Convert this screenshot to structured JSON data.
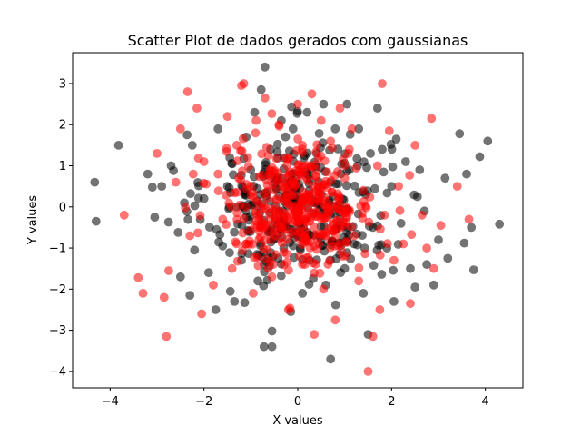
{
  "chart_data": {
    "type": "scatter",
    "title": "Scatter Plot de dados gerados com gaussianas",
    "xlabel": "X values",
    "ylabel": "Y values",
    "xlim": [
      -4.8,
      4.8
    ],
    "ylim": [
      -4.4,
      3.75
    ],
    "xticks": [
      -4,
      -2,
      0,
      2,
      4
    ],
    "xtick_labels": [
      "−4",
      "−2",
      "0",
      "2",
      "4"
    ],
    "yticks": [
      -4,
      -3,
      -2,
      -1,
      0,
      1,
      2,
      3
    ],
    "ytick_labels": [
      "−4",
      "−3",
      "−2",
      "−1",
      "0",
      "1",
      "2",
      "3"
    ],
    "grid": false,
    "series": [
      {
        "color": "#000000",
        "opacity": 0.55,
        "distribution": {
          "mean_x": 0,
          "mean_y": 0,
          "std_x": 1.3,
          "std_y": 1.2
        },
        "points": [
          [
            -4.33,
            0.6
          ],
          [
            -4.3,
            -0.35
          ],
          [
            -3.82,
            1.5
          ],
          [
            -3.2,
            0.8
          ],
          [
            -3.1,
            0.48
          ],
          [
            -3.05,
            -0.25
          ],
          [
            -2.9,
            0.5
          ],
          [
            -2.7,
            1.0
          ],
          [
            -2.65,
            0.88
          ],
          [
            -2.55,
            -0.62
          ],
          [
            -2.5,
            -1.7
          ],
          [
            -2.3,
            -2.15
          ],
          [
            -2.25,
            1.5
          ],
          [
            -2.2,
            -1.05
          ],
          [
            -2.0,
            0.2
          ],
          [
            -1.9,
            -1.6
          ],
          [
            -1.75,
            -2.5
          ],
          [
            -1.7,
            1.9
          ],
          [
            -1.6,
            -0.95
          ],
          [
            -1.5,
            0.5
          ],
          [
            -1.45,
            1.2
          ],
          [
            -1.35,
            -2.3
          ],
          [
            -1.3,
            0.0
          ],
          [
            -1.2,
            -1.3
          ],
          [
            -1.1,
            1.7
          ],
          [
            -1.05,
            -0.6
          ],
          [
            -1.0,
            0.9
          ],
          [
            -0.92,
            2.3
          ],
          [
            -0.85,
            -1.8
          ],
          [
            -0.8,
            0.3
          ],
          [
            -0.78,
            2.85
          ],
          [
            -0.7,
            3.4
          ],
          [
            -0.72,
            -3.4
          ],
          [
            -0.62,
            -1.25
          ],
          [
            -0.58,
            1.4
          ],
          [
            -0.55,
            -3.02
          ],
          [
            -0.55,
            -3.4
          ],
          [
            -0.5,
            0.7
          ],
          [
            -0.4,
            -0.4
          ],
          [
            -0.35,
            2.1
          ],
          [
            -0.3,
            -1.0
          ],
          [
            -0.2,
            0.4
          ],
          [
            -0.15,
            -2.55
          ],
          [
            -0.1,
            1.9
          ],
          [
            0.0,
            -0.2
          ],
          [
            0.05,
            0.8
          ],
          [
            0.1,
            -2.1
          ],
          [
            0.2,
            2.3
          ],
          [
            0.25,
            -1.3
          ],
          [
            0.35,
            0.1
          ],
          [
            0.4,
            1.3
          ],
          [
            0.5,
            -0.8
          ],
          [
            0.55,
            2.5
          ],
          [
            0.6,
            -1.9
          ],
          [
            0.7,
            0.6
          ],
          [
            0.7,
            -3.7
          ],
          [
            0.8,
            1.9
          ],
          [
            0.9,
            -0.3
          ],
          [
            1.0,
            -1.5
          ],
          [
            1.05,
            2.5
          ],
          [
            1.1,
            0.9
          ],
          [
            1.2,
            -0.9
          ],
          [
            1.3,
            1.9
          ],
          [
            1.4,
            -2.1
          ],
          [
            1.45,
            0.3
          ],
          [
            1.5,
            -3.1
          ],
          [
            1.55,
            1.3
          ],
          [
            1.6,
            -0.5
          ],
          [
            1.7,
            2.4
          ],
          [
            1.8,
            1.4
          ],
          [
            1.9,
            -1.0
          ],
          [
            2.0,
            0.5
          ],
          [
            2.05,
            -2.3
          ],
          [
            2.1,
            1.65
          ],
          [
            2.2,
            -0.4
          ],
          [
            2.3,
            1.1
          ],
          [
            2.4,
            -1.5
          ],
          [
            2.5,
            -1.95
          ],
          [
            2.55,
            0.25
          ],
          [
            2.6,
            0.9
          ],
          [
            2.7,
            -0.1
          ],
          [
            2.75,
            -1.4
          ],
          [
            2.9,
            -1.9
          ],
          [
            3.0,
            -0.8
          ],
          [
            3.2,
            -1.25
          ],
          [
            3.45,
            1.78
          ],
          [
            3.55,
            -0.88
          ],
          [
            3.6,
            0.8
          ],
          [
            3.7,
            -0.5
          ],
          [
            3.75,
            -1.53
          ],
          [
            3.88,
            1.22
          ],
          [
            4.05,
            1.6
          ],
          [
            4.3,
            -0.42
          ]
        ]
      },
      {
        "color": "#ff0000",
        "opacity": 0.55,
        "distribution": {
          "mean_x": 0,
          "mean_y": 0,
          "std_x": 1.1,
          "std_y": 1.0
        },
        "points": [
          [
            -3.4,
            -1.72
          ],
          [
            -3.3,
            -2.1
          ],
          [
            -3.7,
            -0.2
          ],
          [
            -3.0,
            1.3
          ],
          [
            -2.85,
            -2.2
          ],
          [
            -2.8,
            -3.15
          ],
          [
            -2.75,
            -1.55
          ],
          [
            -2.6,
            0.6
          ],
          [
            -2.5,
            1.9
          ],
          [
            -2.35,
            2.8
          ],
          [
            -2.3,
            -0.7
          ],
          [
            -2.15,
            2.4
          ],
          [
            -2.05,
            -2.6
          ],
          [
            -2.0,
            1.1
          ],
          [
            -1.8,
            -1.9
          ],
          [
            -1.7,
            0.8
          ],
          [
            -1.6,
            -0.3
          ],
          [
            -1.5,
            2.2
          ],
          [
            -1.4,
            -1.5
          ],
          [
            -1.3,
            1.5
          ],
          [
            -1.2,
            2.95
          ],
          [
            -1.15,
            3.0
          ],
          [
            -1.1,
            -0.9
          ],
          [
            -1.0,
            0.5
          ],
          [
            -0.95,
            -2.1
          ],
          [
            -0.9,
            1.8
          ],
          [
            -0.8,
            -0.5
          ],
          [
            -0.7,
            2.65
          ],
          [
            -0.6,
            0.9
          ],
          [
            -0.55,
            -1.7
          ],
          [
            -0.45,
            0.2
          ],
          [
            -0.4,
            2.0
          ],
          [
            -0.3,
            -1.1
          ],
          [
            -0.25,
            1.2
          ],
          [
            -0.2,
            -2.5
          ],
          [
            -0.1,
            0.6
          ],
          [
            0.0,
            2.5
          ],
          [
            0.05,
            -0.6
          ],
          [
            0.1,
            1.5
          ],
          [
            0.15,
            -1.4
          ],
          [
            0.2,
            0.3
          ],
          [
            0.3,
            2.75
          ],
          [
            0.35,
            -3.1
          ],
          [
            0.4,
            0.9
          ],
          [
            0.45,
            -0.9
          ],
          [
            0.5,
            2.1
          ],
          [
            0.55,
            -2.0
          ],
          [
            0.6,
            0.0
          ],
          [
            0.7,
            1.6
          ],
          [
            0.75,
            -0.4
          ],
          [
            0.8,
            -2.75
          ],
          [
            0.9,
            2.4
          ],
          [
            0.95,
            -1.2
          ],
          [
            1.0,
            0.7
          ],
          [
            1.1,
            1.4
          ],
          [
            1.2,
            -0.7
          ],
          [
            1.3,
            -1.8
          ],
          [
            1.4,
            0.4
          ],
          [
            1.5,
            -4.0
          ],
          [
            1.6,
            -3.15
          ],
          [
            1.7,
            1.0
          ],
          [
            1.75,
            -2.5
          ],
          [
            1.8,
            3.0
          ],
          [
            1.85,
            -0.2
          ],
          [
            1.95,
            1.85
          ],
          [
            2.05,
            -1.3
          ],
          [
            2.15,
            0.5
          ],
          [
            2.25,
            -0.9
          ],
          [
            2.4,
            -2.35
          ],
          [
            2.5,
            1.5
          ],
          [
            2.65,
            -0.2
          ],
          [
            2.75,
            -1.0
          ],
          [
            2.85,
            2.15
          ],
          [
            2.9,
            -1.5
          ],
          [
            3.05,
            -0.45
          ],
          [
            3.4,
            0.5
          ],
          [
            3.65,
            -0.3
          ]
        ]
      }
    ]
  }
}
